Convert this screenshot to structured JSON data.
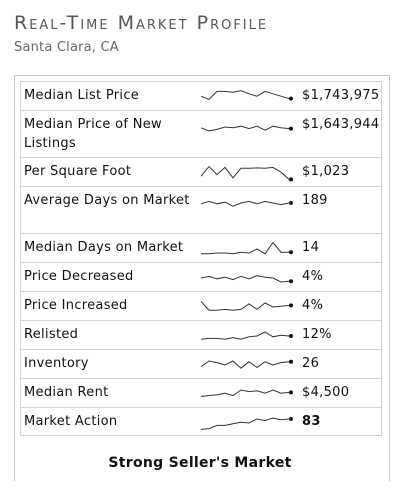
{
  "header": {
    "title": "Real-Time Market Profile",
    "location": "Santa Clara, CA"
  },
  "rows": [
    {
      "label": "Median List Price",
      "value": "$1,743,975",
      "bold": false,
      "spark": [
        0.55,
        0.35,
        0.85,
        0.85,
        0.8,
        0.9,
        0.7,
        0.55,
        0.85,
        0.7,
        0.55,
        0.4
      ]
    },
    {
      "label": "Median Price of New Listings",
      "value": "$1,643,944",
      "bold": false,
      "spark": [
        0.45,
        0.25,
        0.35,
        0.5,
        0.45,
        0.55,
        0.4,
        0.55,
        0.3,
        0.55,
        0.45,
        0.4
      ]
    },
    {
      "label": "Per Square Foot",
      "value": "$1,023",
      "bold": false,
      "spark": [
        0.3,
        0.9,
        0.4,
        0.85,
        0.2,
        0.8,
        0.8,
        0.82,
        0.8,
        0.85,
        0.55,
        0.1
      ]
    },
    {
      "label": "Average Days on Market",
      "value": "189",
      "bold": false,
      "spark": [
        0.45,
        0.6,
        0.45,
        0.55,
        0.3,
        0.5,
        0.6,
        0.45,
        0.6,
        0.5,
        0.4,
        0.5
      ]
    },
    {
      "label": "Median Days on Market",
      "value": "14",
      "bold": false,
      "spark": [
        0.2,
        0.2,
        0.25,
        0.25,
        0.2,
        0.3,
        0.25,
        0.5,
        0.2,
        0.9,
        0.3,
        0.3
      ]
    },
    {
      "label": "Price Decreased",
      "value": "4%",
      "bold": false,
      "spark": [
        0.5,
        0.6,
        0.45,
        0.55,
        0.4,
        0.6,
        0.45,
        0.65,
        0.55,
        0.5,
        0.25,
        0.3
      ]
    },
    {
      "label": "Price Increased",
      "value": "4%",
      "bold": false,
      "spark": [
        0.85,
        0.3,
        0.3,
        0.35,
        0.3,
        0.35,
        0.7,
        0.35,
        0.75,
        0.5,
        0.55,
        0.6
      ]
    },
    {
      "label": "Relisted",
      "value": "12%",
      "bold": false,
      "spark": [
        0.3,
        0.35,
        0.35,
        0.3,
        0.4,
        0.3,
        0.45,
        0.5,
        0.75,
        0.45,
        0.55,
        0.5
      ]
    },
    {
      "label": "Inventory",
      "value": "26",
      "bold": false,
      "spark": [
        0.4,
        0.75,
        0.65,
        0.5,
        0.75,
        0.3,
        0.7,
        0.35,
        0.7,
        0.5,
        0.65,
        0.7
      ]
    },
    {
      "label": "Median Rent",
      "value": "$4,500",
      "bold": false,
      "spark": [
        0.35,
        0.4,
        0.45,
        0.55,
        0.4,
        0.75,
        0.65,
        0.7,
        0.55,
        0.75,
        0.55,
        0.6
      ]
    },
    {
      "label": "Market Action",
      "value": "83",
      "bold": true,
      "spark": [
        0.1,
        0.15,
        0.35,
        0.35,
        0.45,
        0.55,
        0.5,
        0.75,
        0.65,
        0.8,
        0.7,
        0.75
      ]
    }
  ],
  "verdict": "Strong Seller's Market"
}
